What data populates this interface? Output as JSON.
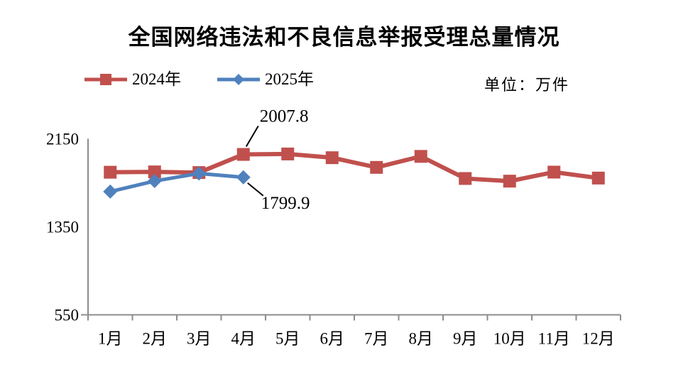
{
  "title": "全国网络违法和不良信息举报受理总量情况",
  "unit_label": "单位：万件",
  "legend": [
    {
      "label": "2024年",
      "color": "#C0504D",
      "marker": "square"
    },
    {
      "label": "2025年",
      "color": "#4F81BD",
      "marker": "diamond"
    }
  ],
  "chart_data": {
    "type": "line",
    "title": "全国网络违法和不良信息举报受理总量情况",
    "unit": "万件",
    "categories": [
      "1月",
      "2月",
      "3月",
      "4月",
      "5月",
      "6月",
      "7月",
      "8月",
      "9月",
      "10月",
      "11月",
      "12月"
    ],
    "series": [
      {
        "name": "2024年",
        "color": "#C0504D",
        "marker": "square",
        "line_width": 6,
        "values": [
          1846,
          1849,
          1843,
          2007.8,
          2012,
          1978,
          1890,
          1990,
          1789,
          1765,
          1847,
          1793
        ]
      },
      {
        "name": "2025年",
        "color": "#4F81BD",
        "marker": "diamond",
        "line_width": 5,
        "values": [
          1670,
          1766,
          1835,
          1799.9,
          null,
          null,
          null,
          null,
          null,
          null,
          null,
          null
        ]
      }
    ],
    "annotations": [
      {
        "series": "2024年",
        "category": "4月",
        "text": "2007.8"
      },
      {
        "series": "2025年",
        "category": "4月",
        "text": "1799.9"
      }
    ],
    "yticks": [
      550,
      1350,
      2150
    ],
    "ylim": [
      550,
      2150
    ],
    "grid": false,
    "legend_position": "top-left",
    "axis_color": "#8C8C8C",
    "text_color": "#000000"
  }
}
